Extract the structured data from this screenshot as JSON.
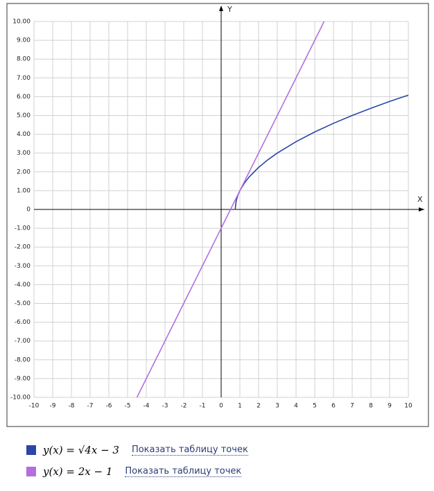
{
  "chart_data": {
    "type": "line",
    "x_label": "X",
    "y_label": "Y",
    "xlim": [
      -10,
      10
    ],
    "ylim": [
      -10,
      10
    ],
    "xticks": [
      -10,
      -9,
      -8,
      -7,
      -6,
      -5,
      -4,
      -3,
      -2,
      -1,
      0,
      1,
      2,
      3,
      4,
      5,
      6,
      7,
      8,
      9,
      10
    ],
    "yticks": [
      {
        "value": 10,
        "label": "10.00"
      },
      {
        "value": 9,
        "label": "9.00"
      },
      {
        "value": 8,
        "label": "8.00"
      },
      {
        "value": 7,
        "label": "7.00"
      },
      {
        "value": 6,
        "label": "6.00"
      },
      {
        "value": 5,
        "label": "5.00"
      },
      {
        "value": 4,
        "label": "4.00"
      },
      {
        "value": 3,
        "label": "3.00"
      },
      {
        "value": 2,
        "label": "2.00"
      },
      {
        "value": 1,
        "label": "1.00"
      },
      0,
      {
        "value": -1,
        "label": "-1.00"
      },
      {
        "value": -2,
        "label": "-2.00"
      },
      {
        "value": -3,
        "label": "-3.00"
      },
      {
        "value": -4,
        "label": "-4.00"
      },
      {
        "value": -5,
        "label": "-5.00"
      },
      {
        "value": -6,
        "label": "-6.00"
      },
      {
        "value": -7,
        "label": "-7.00"
      },
      {
        "value": -8,
        "label": "-8.00"
      },
      {
        "value": -9,
        "label": "-9.00"
      },
      {
        "value": -10,
        "label": "-10.00"
      }
    ],
    "grid": true,
    "table_link": "Показать таблицу точек",
    "series": [
      {
        "name": "y(x) = √4x − 3",
        "color": "#2a46a8",
        "x": [
          0.75,
          0.8,
          0.9,
          1,
          1.25,
          1.5,
          2,
          2.5,
          3,
          4,
          5,
          6,
          7,
          8,
          9,
          10
        ],
        "values": [
          0,
          0.447,
          0.775,
          1,
          1.414,
          1.732,
          2.236,
          2.646,
          3,
          3.606,
          4.123,
          4.583,
          5,
          5.385,
          5.745,
          6.083
        ]
      },
      {
        "name": "y(x) = 2x − 1",
        "color": "#b36ee0",
        "x": [
          -4.5,
          5.5
        ],
        "values": [
          -10,
          10
        ]
      }
    ]
  }
}
